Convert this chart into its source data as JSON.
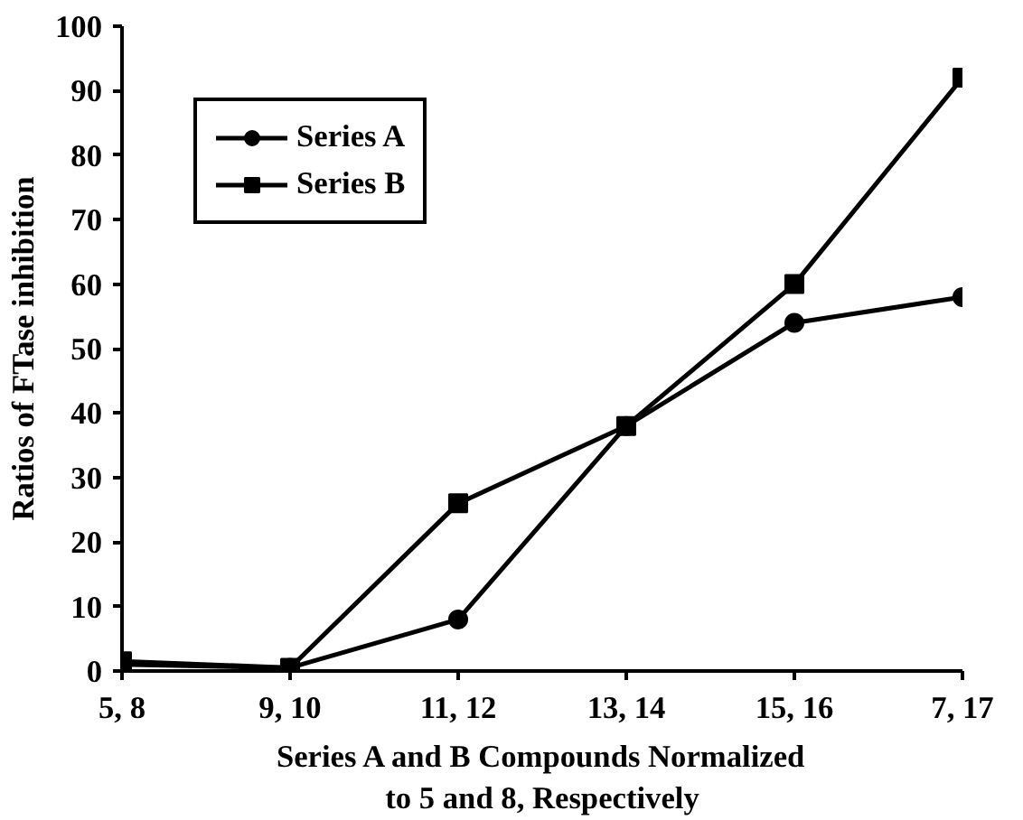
{
  "chart_data": {
    "type": "line",
    "xlabel": "Series A and B Compounds Normalized\nto 5 and 8, Respectively",
    "ylabel": "Ratios of FTase inhibition",
    "categories": [
      "5, 8",
      "9, 10",
      "11, 12",
      "13, 14",
      "15, 16",
      "7, 17"
    ],
    "series": [
      {
        "name": "Series A",
        "color": "#000000",
        "marker": "circle",
        "values": [
          1,
          0.5,
          8,
          38,
          54,
          58
        ]
      },
      {
        "name": "Series B",
        "color": "#000000",
        "marker": "square",
        "values": [
          1.5,
          0.5,
          26,
          38,
          60,
          92
        ]
      }
    ],
    "ylim": [
      0,
      100
    ],
    "yticks": [
      0,
      10,
      20,
      30,
      40,
      50,
      60,
      70,
      80,
      90,
      100
    ],
    "grid": false,
    "legend": "top left",
    "line_style": "solid"
  }
}
